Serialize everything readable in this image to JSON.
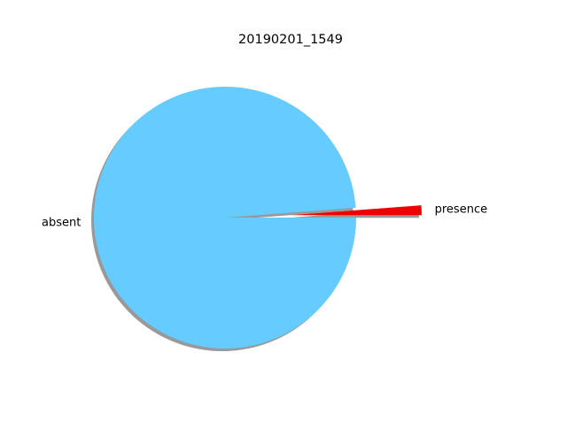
{
  "chart_data": {
    "type": "pie",
    "title": "20190201_1549",
    "slices": [
      {
        "label": "presence",
        "value": 1.2,
        "color": "#ee0000",
        "explode": 0.5
      },
      {
        "label": "absent",
        "value": 98.8,
        "color": "#66ccff",
        "explode": 0
      }
    ],
    "start_angle_deg": 0,
    "counterclockwise": true,
    "shadow": true,
    "legend": "none"
  }
}
